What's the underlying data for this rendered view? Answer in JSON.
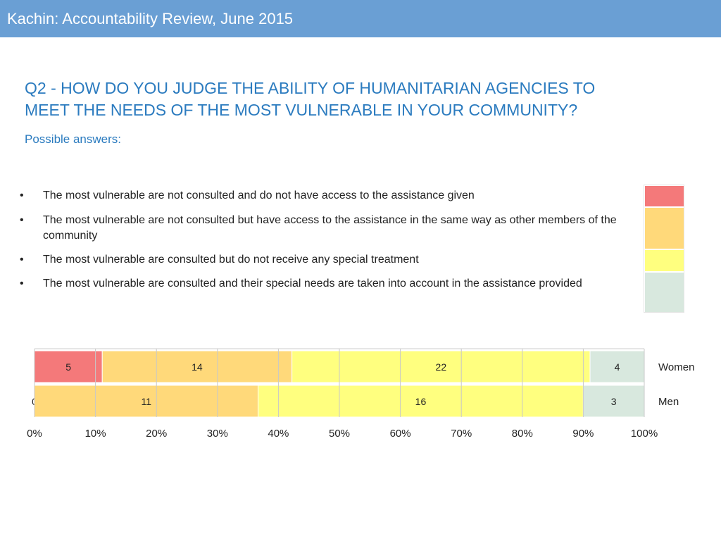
{
  "header": {
    "title": "Kachin: Accountability Review, June 2015",
    "background": "#6a9fd4"
  },
  "question": {
    "line1": "Q2 - HOW DO YOU JUDGE THE ABILITY OF HUMANITARIAN AGENCIES TO",
    "line2": "MEET THE NEEDS OF THE MOST VULNERABLE IN YOUR COMMUNITY?"
  },
  "answers": {
    "label": "Possible answers:",
    "bullet": "•",
    "items": [
      "The most vulnerable are not consulted and do not have access to the assistance given",
      "The most vulnerable are not consulted but have access to the assistance in the same way as other members of the community",
      "The most vulnerable are consulted but do not receive any special treatment",
      "The most vulnerable are consulted and their special needs are taken into account in the assistance provided"
    ]
  },
  "colors": {
    "not_consulted_no_access": "#f4797a",
    "not_consulted_access": "#ffd97a",
    "consulted_no_special": "#ffff7f",
    "consulted_special_needs": "#d8e8de"
  },
  "chart_data": {
    "type": "bar",
    "orientation": "horizontal",
    "stacked": "percent",
    "categories": [
      "Women",
      "Men"
    ],
    "series": [
      {
        "name": "The most vulnerable are not consulted and do not have access to the assistance given",
        "values": [
          5,
          0
        ],
        "labels": [
          "5",
          "0"
        ],
        "color": "#f4797a"
      },
      {
        "name": "The most vulnerable are not consulted but have access to the assistance in the same way as other members of the community",
        "values": [
          14,
          11
        ],
        "labels": [
          "14",
          "11"
        ],
        "color": "#ffd97a"
      },
      {
        "name": "The most vulnerable are consulted but do not receive any special treatment",
        "values": [
          22,
          16
        ],
        "labels": [
          "22",
          "16"
        ],
        "color": "#ffff7f"
      },
      {
        "name": "The most vulnerable are consulted and their special needs are taken into account in the assistance provided",
        "values": [
          4,
          3
        ],
        "labels": [
          "4",
          "3"
        ],
        "color": "#d8e8de"
      }
    ],
    "xticks": [
      "0%",
      "10%",
      "20%",
      "30%",
      "40%",
      "50%",
      "60%",
      "70%",
      "80%",
      "90%",
      "100%"
    ],
    "xlim": [
      0,
      100
    ],
    "grid": true
  }
}
